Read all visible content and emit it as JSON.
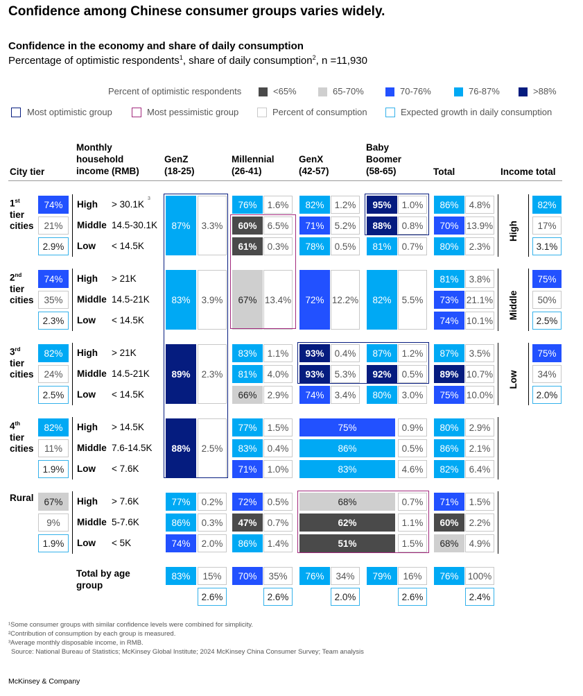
{
  "title": "Confidence among Chinese consumer groups varies widely.",
  "subtitle": "Confidence in the economy and share of daily consumption",
  "description_parts": [
    "Percentage of optimistic respondents",
    "1",
    ", share of daily consumption",
    "2",
    ", n =11,930"
  ],
  "legend": {
    "optimistic_label": "Percent of optimistic respondents",
    "bins": [
      {
        "label": "<65%",
        "color": "#4a4a4a"
      },
      {
        "label": "65-70%",
        "color": "#cfcfcf"
      },
      {
        "label": "70-76%",
        "color": "#2251ff"
      },
      {
        "label": "76-87%",
        "color": "#00a9f4"
      },
      {
        "label": ">88%",
        "color": "#051c7f"
      }
    ],
    "boxes": [
      {
        "label": "Most optimistic group",
        "color": "#051c7f"
      },
      {
        "label": "Most pessimistic group",
        "color": "#a1287c"
      },
      {
        "label": "Percent of consumption",
        "color": "#c8c8c8"
      },
      {
        "label": "Expected growth in daily consumption",
        "color": "#33b1ea"
      }
    ]
  },
  "headers": {
    "city_tier": "City tier",
    "income": "Monthly\nhousehold\nincome (RMB)",
    "genz": "GenZ\n(18-25)",
    "millennial": "Millennial\n(26-41)",
    "genx": "GenX\n(42-57)",
    "boomer": "Baby\nBoomer\n(58-65)",
    "total": "Total",
    "income_total": "Income total"
  },
  "chart_data": {
    "type": "table",
    "age_groups": [
      "GenZ (18-25)",
      "Millennial (26-41)",
      "GenX (42-57)",
      "Baby Boomer (58-65)"
    ],
    "tiers": [
      {
        "name": "1st tier cities",
        "label": "1",
        "sup": "st",
        "label2": "tier",
        "label3": "cities",
        "tier_optimism": "74%",
        "tier_consumption": "21%",
        "tier_growth": "2.9%",
        "rows": [
          {
            "income": "High",
            "range": "> 30.1K",
            "range_sup": "3",
            "total_opt": "86%",
            "total_cons": "4.8%"
          },
          {
            "income": "Middle",
            "range": "14.5-30.1K",
            "total_opt": "70%",
            "total_cons": "13.9%"
          },
          {
            "income": "Low",
            "range": "< 14.5K",
            "total_opt": "80%",
            "total_cons": "2.3%"
          }
        ],
        "genz": [
          {
            "opt": "87%",
            "cons": "3.3%"
          }
        ],
        "millennial": [
          {
            "opt": "76%",
            "cons": "1.6%"
          },
          {
            "opt": "60%",
            "cons": "6.5%"
          },
          {
            "opt": "61%",
            "cons": "0.3%"
          }
        ],
        "genx": [
          {
            "opt": "82%",
            "cons": "1.2%"
          },
          {
            "opt": "71%",
            "cons": "5.2%"
          },
          {
            "opt": "78%",
            "cons": "0.5%"
          }
        ],
        "boomer": [
          {
            "opt": "95%",
            "cons": "1.0%"
          },
          {
            "opt": "88%",
            "cons": "0.8%"
          },
          {
            "opt": "81%",
            "cons": "0.7%"
          }
        ]
      },
      {
        "name": "2nd tier cities",
        "label": "2",
        "sup": "nd",
        "label2": "tier",
        "label3": "cities",
        "tier_optimism": "74%",
        "tier_consumption": "35%",
        "tier_growth": "2.3%",
        "rows": [
          {
            "income": "High",
            "range": "> 21K",
            "total_opt": "81%",
            "total_cons": "3.8%"
          },
          {
            "income": "Middle",
            "range": "14.5-21K",
            "total_opt": "73%",
            "total_cons": "21.1%"
          },
          {
            "income": "Low",
            "range": "< 14.5K",
            "total_opt": "74%",
            "total_cons": "10.1%"
          }
        ],
        "genz": [
          {
            "opt": "83%",
            "cons": "3.9%"
          }
        ],
        "millennial": [
          {
            "opt": "67%",
            "cons": "13.4%"
          }
        ],
        "genx": [
          {
            "opt": "72%",
            "cons": "12.2%"
          }
        ],
        "boomer": [
          {
            "opt": "82%",
            "cons": "5.5%"
          }
        ]
      },
      {
        "name": "3rd tier cities",
        "label": "3",
        "sup": "rd",
        "label2": "tier",
        "label3": "cities",
        "tier_optimism": "82%",
        "tier_consumption": "24%",
        "tier_growth": "2.5%",
        "rows": [
          {
            "income": "High",
            "range": "> 21K",
            "total_opt": "87%",
            "total_cons": "3.5%"
          },
          {
            "income": "Middle",
            "range": "14.5-21K",
            "total_opt": "89%",
            "total_cons": "10.7%"
          },
          {
            "income": "Low",
            "range": "< 14.5K",
            "total_opt": "75%",
            "total_cons": "10.0%"
          }
        ],
        "genz": [
          {
            "opt": "89%",
            "cons": "2.3%"
          }
        ],
        "millennial": [
          {
            "opt": "83%",
            "cons": "1.1%"
          },
          {
            "opt": "81%",
            "cons": "4.0%"
          },
          {
            "opt": "66%",
            "cons": "2.9%"
          }
        ],
        "genx": [
          {
            "opt": "93%",
            "cons": "0.4%"
          },
          {
            "opt": "93%",
            "cons": "5.3%"
          },
          {
            "opt": "74%",
            "cons": "3.4%"
          }
        ],
        "boomer": [
          {
            "opt": "87%",
            "cons": "1.2%"
          },
          {
            "opt": "92%",
            "cons": "0.5%"
          },
          {
            "opt": "80%",
            "cons": "3.0%"
          }
        ]
      },
      {
        "name": "4th tier cities",
        "label": "4",
        "sup": "th",
        "label2": "tier",
        "label3": "cities",
        "tier_optimism": "82%",
        "tier_consumption": "11%",
        "tier_growth": "1.9%",
        "rows": [
          {
            "income": "High",
            "range": "> 14.5K",
            "total_opt": "80%",
            "total_cons": "2.9%"
          },
          {
            "income": "Middle",
            "range": "7.6-14.5K",
            "total_opt": "86%",
            "total_cons": "2.1%"
          },
          {
            "income": "Low",
            "range": "< 7.6K",
            "total_opt": "82%",
            "total_cons": "6.4%"
          }
        ],
        "genz": [
          {
            "opt": "88%",
            "cons": "2.5%"
          }
        ],
        "millennial": [
          {
            "opt": "77%",
            "cons": "1.5%"
          },
          {
            "opt": "83%",
            "cons": "0.4%"
          },
          {
            "opt": "71%",
            "cons": "1.0%"
          }
        ],
        "genx_boomer": [
          {
            "opt": "75%",
            "cons": "0.9%"
          },
          {
            "opt": "86%",
            "cons": "0.5%"
          },
          {
            "opt": "83%",
            "cons": "4.6%"
          }
        ]
      },
      {
        "name": "Rural",
        "label": "Rural",
        "sup": "",
        "label2": "",
        "label3": "",
        "tier_optimism": "67%",
        "tier_consumption": "9%",
        "tier_growth": "1.9%",
        "rows": [
          {
            "income": "High",
            "range": "> 7.6K",
            "total_opt": "71%",
            "total_cons": "1.5%"
          },
          {
            "income": "Middle",
            "range": "5-7.6K",
            "total_opt": "60%",
            "total_cons": "2.2%"
          },
          {
            "income": "Low",
            "range": "< 5K",
            "total_opt": "68%",
            "total_cons": "4.9%"
          }
        ],
        "genz": [
          {
            "opt": "77%",
            "cons": "0.2%"
          },
          {
            "opt": "86%",
            "cons": "0.3%"
          },
          {
            "opt": "74%",
            "cons": "2.0%"
          }
        ],
        "millennial": [
          {
            "opt": "72%",
            "cons": "0.5%"
          },
          {
            "opt": "47%",
            "cons": "0.7%"
          },
          {
            "opt": "86%",
            "cons": "1.4%"
          }
        ],
        "genx_boomer": [
          {
            "opt": "68%",
            "cons": "0.7%"
          },
          {
            "opt": "62%",
            "cons": "1.1%"
          },
          {
            "opt": "51%",
            "cons": "1.5%"
          }
        ]
      }
    ],
    "income_totals": [
      {
        "label": "High",
        "optimism": "82%",
        "consumption": "17%",
        "growth": "3.1%"
      },
      {
        "label": "Middle",
        "optimism": "75%",
        "consumption": "50%",
        "growth": "2.5%"
      },
      {
        "label": "Low",
        "optimism": "75%",
        "consumption": "34%",
        "growth": "2.0%"
      }
    ],
    "age_totals": {
      "label": "Total by age\ngroup",
      "genz": {
        "opt": "83%",
        "cons": "15%",
        "growth": "2.6%"
      },
      "millennial": {
        "opt": "70%",
        "cons": "35%",
        "growth": "2.6%"
      },
      "genx": {
        "opt": "76%",
        "cons": "34%",
        "growth": "2.0%"
      },
      "boomer": {
        "opt": "79%",
        "cons": "16%",
        "growth": "2.6%"
      },
      "total": {
        "opt": "76%",
        "cons": "100%",
        "growth": "2.4%"
      }
    }
  },
  "footnotes": [
    "¹Some consumer groups with similar confidence levels were combined for simplicity.",
    "²Contribution of consumption by each group is measured.",
    "³Average monthly disposable income, in RMB.",
    "Source: National Bureau of Statistics; McKinsey Global Institute; 2024 McKinsey China Consumer Survey; Team analysis"
  ],
  "brand": "McKinsey & Company"
}
